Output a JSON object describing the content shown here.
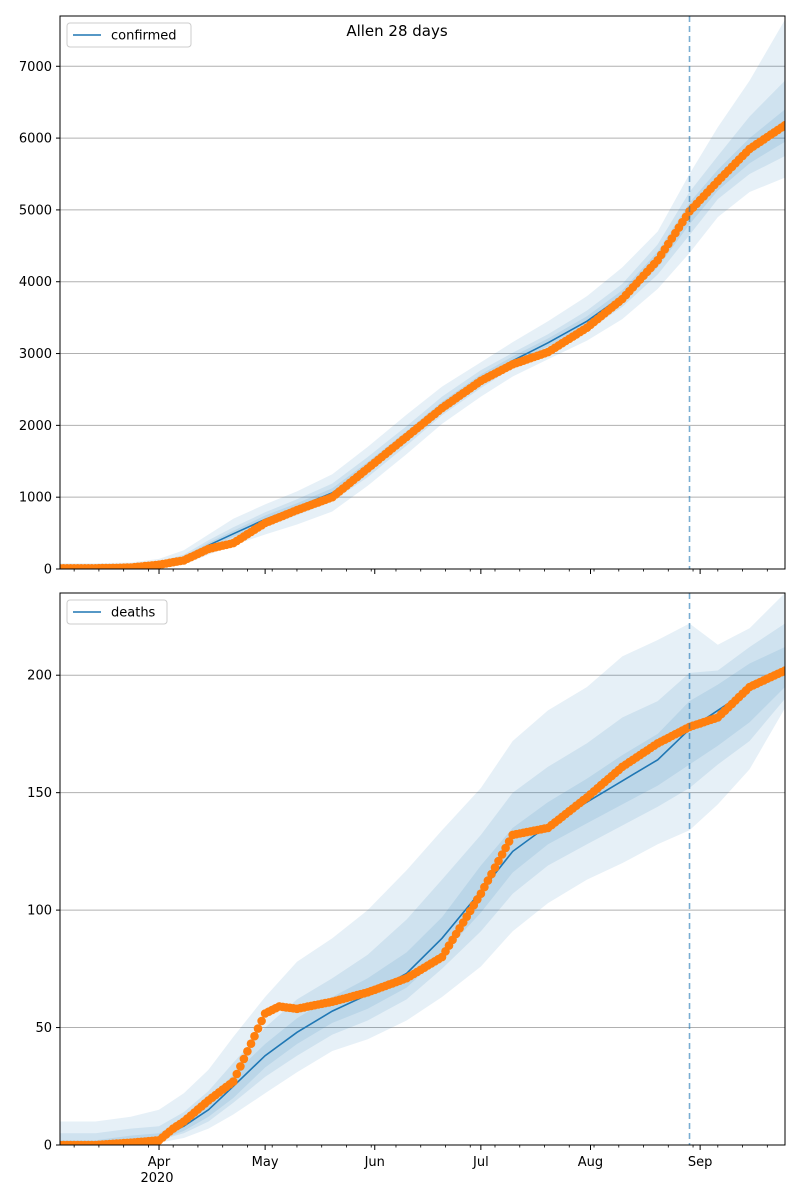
{
  "title": "Allen 28 days",
  "colors": {
    "line": "#1f77b4",
    "points": "#ff7f0e",
    "band": "#1f77b4",
    "grid": "#b0b0b0",
    "forecast_line": "#1f77b4"
  },
  "x_axis": {
    "tick_labels": [
      "Apr",
      "May",
      "Jun",
      "Jul",
      "Aug",
      "Sep"
    ],
    "year_label": "2020"
  },
  "chart_data": [
    {
      "type": "line",
      "legend": "confirmed",
      "legend_position": "top-left",
      "grid": "horizontal",
      "x_range": [
        "2020-03-04",
        "2020-09-25"
      ],
      "ylim": [
        0,
        7700
      ],
      "yticks": [
        0,
        1000,
        2000,
        3000,
        4000,
        5000,
        6000,
        7000
      ],
      "forecast_start": "2020-08-29",
      "series": [
        {
          "name": "confirmed",
          "x": [
            "2020-03-04",
            "2020-03-14",
            "2020-03-24",
            "2020-04-01",
            "2020-04-08",
            "2020-04-15",
            "2020-04-22",
            "2020-05-01",
            "2020-05-10",
            "2020-05-20",
            "2020-05-30",
            "2020-06-10",
            "2020-06-20",
            "2020-07-01",
            "2020-07-10",
            "2020-07-20",
            "2020-07-31",
            "2020-08-10",
            "2020-08-20",
            "2020-08-29",
            "2020-09-06",
            "2020-09-15",
            "2020-09-25"
          ],
          "y": [
            10,
            10,
            20,
            60,
            150,
            330,
            490,
            690,
            860,
            1060,
            1420,
            1850,
            2260,
            2640,
            2900,
            3150,
            3450,
            3800,
            4300,
            4950,
            5400,
            5800,
            6150
          ]
        }
      ],
      "observed": {
        "name": "confirmed observed",
        "x": [
          "2020-03-04",
          "2020-03-14",
          "2020-03-24",
          "2020-04-01",
          "2020-04-08",
          "2020-04-15",
          "2020-04-22",
          "2020-05-01",
          "2020-05-10",
          "2020-05-20",
          "2020-05-30",
          "2020-06-10",
          "2020-06-20",
          "2020-07-01",
          "2020-07-10",
          "2020-07-20",
          "2020-07-31",
          "2020-08-10",
          "2020-08-20",
          "2020-08-29",
          "2020-09-06",
          "2020-09-15",
          "2020-09-25"
        ],
        "y": [
          10,
          10,
          20,
          60,
          120,
          280,
          360,
          640,
          820,
          1000,
          1400,
          1840,
          2240,
          2620,
          2850,
          3020,
          3360,
          3760,
          4300,
          4980,
          5400,
          5850,
          6180
        ]
      },
      "bands": [
        {
          "level": "outer",
          "lower": [
            0,
            0,
            0,
            20,
            60,
            200,
            330,
            480,
            620,
            800,
            1160,
            1600,
            2020,
            2400,
            2680,
            2920,
            3180,
            3480,
            3900,
            4400,
            4900,
            5250,
            5450
          ],
          "upper": [
            80,
            80,
            90,
            140,
            260,
            480,
            700,
            900,
            1080,
            1320,
            1700,
            2150,
            2540,
            2880,
            3160,
            3450,
            3800,
            4200,
            4700,
            5500,
            6150,
            6800,
            7650
          ]
        },
        {
          "level": "middle",
          "lower": [
            0,
            0,
            5,
            35,
            100,
            260,
            410,
            590,
            750,
            940,
            1280,
            1720,
            2140,
            2520,
            2800,
            3040,
            3320,
            3650,
            4100,
            4650,
            5150,
            5500,
            5750
          ],
          "upper": [
            40,
            40,
            50,
            100,
            200,
            400,
            580,
            790,
            970,
            1190,
            1560,
            1990,
            2400,
            2770,
            3010,
            3270,
            3600,
            3970,
            4520,
            5250,
            5750,
            6300,
            6800
          ]
        },
        {
          "level": "inner",
          "lower": [
            0,
            5,
            12,
            48,
            125,
            300,
            450,
            640,
            810,
            1000,
            1350,
            1790,
            2200,
            2580,
            2850,
            3100,
            3390,
            3730,
            4200,
            4800,
            5270,
            5650,
            5950
          ],
          "upper": [
            25,
            25,
            35,
            80,
            175,
            365,
            530,
            745,
            915,
            1125,
            1490,
            1920,
            2330,
            2710,
            2960,
            3210,
            3520,
            3880,
            4420,
            5100,
            5560,
            6000,
            6400
          ]
        }
      ]
    },
    {
      "type": "line",
      "legend": "deaths",
      "legend_position": "top-left",
      "grid": "horizontal",
      "x_range": [
        "2020-03-04",
        "2020-09-25"
      ],
      "ylim": [
        0,
        235
      ],
      "yticks": [
        0,
        50,
        100,
        150,
        200
      ],
      "forecast_start": "2020-08-29",
      "series": [
        {
          "name": "deaths",
          "x": [
            "2020-03-04",
            "2020-03-14",
            "2020-03-24",
            "2020-04-01",
            "2020-04-08",
            "2020-04-15",
            "2020-04-22",
            "2020-05-01",
            "2020-05-10",
            "2020-05-20",
            "2020-05-30",
            "2020-06-10",
            "2020-06-20",
            "2020-07-01",
            "2020-07-10",
            "2020-07-20",
            "2020-07-31",
            "2020-08-10",
            "2020-08-20",
            "2020-08-29",
            "2020-09-06",
            "2020-09-15",
            "2020-09-25"
          ],
          "y": [
            0,
            0,
            1,
            3,
            8,
            15,
            25,
            38,
            48,
            57,
            64,
            73,
            88,
            108,
            125,
            136,
            146,
            155,
            164,
            177,
            185,
            194,
            202
          ]
        }
      ],
      "observed": {
        "name": "deaths observed",
        "x": [
          "2020-03-04",
          "2020-03-14",
          "2020-03-24",
          "2020-04-01",
          "2020-04-05",
          "2020-04-08",
          "2020-04-15",
          "2020-04-22",
          "2020-05-01",
          "2020-05-05",
          "2020-05-10",
          "2020-05-20",
          "2020-05-30",
          "2020-06-10",
          "2020-06-20",
          "2020-07-01",
          "2020-07-10",
          "2020-07-20",
          "2020-07-31",
          "2020-08-10",
          "2020-08-20",
          "2020-08-29",
          "2020-09-06",
          "2020-09-15",
          "2020-09-25"
        ],
        "y": [
          0,
          0,
          1,
          2,
          7,
          10,
          19,
          27,
          56,
          59,
          58,
          61,
          65,
          71,
          80,
          107,
          132,
          135,
          148,
          161,
          171,
          178,
          182,
          195,
          202
        ]
      },
      "bands": [
        {
          "level": "outer",
          "lower": [
            0,
            0,
            0,
            1,
            3,
            7,
            13,
            22,
            31,
            40,
            45,
            53,
            63,
            76,
            91,
            103,
            113,
            120,
            128,
            134,
            145,
            160,
            186
          ],
          "upper": [
            10,
            10,
            12,
            15,
            22,
            32,
            46,
            63,
            78,
            88,
            100,
            117,
            134,
            152,
            172,
            185,
            195,
            208,
            215,
            222,
            213,
            220,
            235
          ]
        },
        {
          "level": "middle",
          "lower": [
            0,
            0,
            0,
            2,
            5,
            10,
            18,
            29,
            38,
            47,
            53,
            62,
            75,
            91,
            107,
            119,
            128,
            136,
            144,
            152,
            162,
            172,
            190
          ],
          "upper": [
            5,
            5,
            7,
            8,
            14,
            23,
            35,
            50,
            62,
            71,
            81,
            96,
            113,
            132,
            150,
            161,
            171,
            182,
            189,
            201,
            202,
            212,
            222
          ]
        },
        {
          "level": "inner",
          "lower": [
            0,
            0,
            0,
            2,
            6,
            12,
            20,
            33,
            43,
            52,
            58,
            67,
            81,
            99,
            116,
            128,
            137,
            145,
            153,
            162,
            170,
            180,
            195
          ],
          "upper": [
            2,
            2,
            4,
            5,
            11,
            19,
            30,
            43,
            54,
            63,
            71,
            82,
            97,
            119,
            135,
            146,
            156,
            166,
            175,
            189,
            196,
            205,
            212
          ]
        }
      ]
    }
  ]
}
